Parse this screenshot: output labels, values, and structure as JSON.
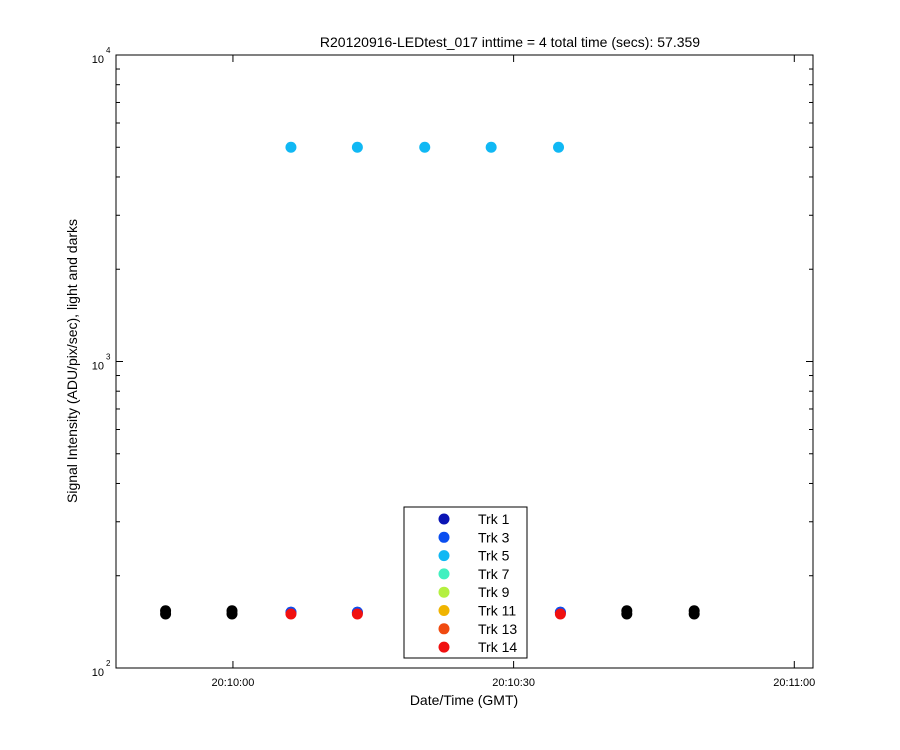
{
  "chart_data": {
    "type": "scatter",
    "title": "R20120916-LEDtest_017 inttime = 4 total time (secs): 57.359",
    "xlabel": "Date/Time (GMT)",
    "ylabel": "Signal Intensity (ADU/pix/sec), light and darks",
    "y_scale": "log",
    "ylim": [
      100,
      10000
    ],
    "xlim": [
      "20:09:47.5",
      "20:11:02"
    ],
    "x_ticks": [
      "20:10:00",
      "20:10:30",
      "20:11:00"
    ],
    "y_ticks": [
      {
        "value": 100,
        "base": "10",
        "exp": "2"
      },
      {
        "value": 1000,
        "base": "10",
        "exp": "3"
      },
      {
        "value": 10000,
        "base": "10",
        "exp": "4"
      }
    ],
    "grid": false,
    "legend_position": "bottom-center",
    "series": [
      {
        "name": "Trk 1",
        "color": "#0a14b4",
        "points": [
          [
            "20:10:06.2",
            152
          ],
          [
            "20:10:13.3",
            152
          ],
          [
            "20:10:35.0",
            152
          ]
        ]
      },
      {
        "name": "Trk 3",
        "color": "#0a4ef0",
        "points": [
          [
            "20:10:06.2",
            152
          ],
          [
            "20:10:13.3",
            152
          ],
          [
            "20:10:35.0",
            152
          ]
        ]
      },
      {
        "name": "Trk 5",
        "color": "#10b8f4",
        "points": [
          [
            "20:10:06.2",
            5000
          ],
          [
            "20:10:13.3",
            5000
          ],
          [
            "20:10:20.5",
            5000
          ],
          [
            "20:10:27.6",
            5000
          ],
          [
            "20:10:34.8",
            5000
          ]
        ]
      },
      {
        "name": "Trk 7",
        "color": "#40f0c0",
        "points": []
      },
      {
        "name": "Trk 9",
        "color": "#b4f040",
        "points": []
      },
      {
        "name": "Trk 11",
        "color": "#f0b400",
        "points": []
      },
      {
        "name": "Trk 13",
        "color": "#f04a10",
        "points": []
      },
      {
        "name": "Trk 14",
        "color": "#f01010",
        "points": [
          [
            "20:10:06.2",
            150
          ],
          [
            "20:10:13.3",
            150
          ],
          [
            "20:10:35.0",
            150
          ]
        ]
      }
    ],
    "darks": {
      "color": "#000000",
      "points": [
        [
          "20:09:52.8",
          150
        ],
        [
          "20:09:59.9",
          150
        ],
        [
          "20:10:42.1",
          150
        ],
        [
          "20:10:49.3",
          150
        ]
      ]
    }
  }
}
